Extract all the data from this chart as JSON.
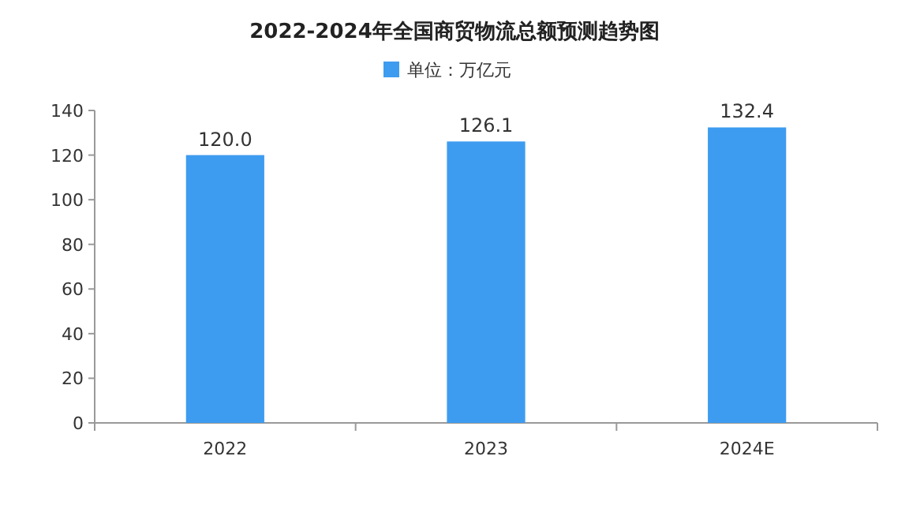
{
  "chart_data": {
    "type": "bar",
    "title": "2022-2024年全国商贸物流总额预测趋势图",
    "categories": [
      "2022",
      "2023",
      "2024E"
    ],
    "series": [
      {
        "name": "单位：万亿元",
        "color": "#3d9cf0",
        "values": [
          120.0,
          126.1,
          132.4
        ],
        "value_labels": [
          "120.0",
          "126.1",
          "132.4"
        ]
      }
    ],
    "ylim": [
      0,
      140
    ],
    "yticks": [
      0,
      20,
      40,
      60,
      80,
      100,
      120,
      140
    ],
    "legend": "top"
  }
}
